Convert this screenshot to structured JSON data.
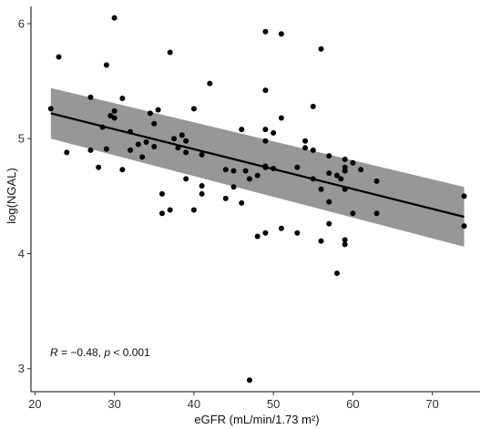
{
  "chart_data": {
    "type": "scatter",
    "title": "",
    "xlabel": "eGFR (mL/min/1.73 m²)",
    "ylabel": "log(NGAL)",
    "xlim": [
      19.5,
      76
    ],
    "ylim": [
      2.8,
      6.15
    ],
    "xticks": [
      20,
      30,
      40,
      50,
      60,
      70
    ],
    "yticks": [
      3,
      4,
      5,
      6
    ],
    "grid": false,
    "point_color": "#000000",
    "band_color": "#8c8c8c",
    "line_color": "#000000",
    "regression": {
      "x": [
        22,
        74
      ],
      "y": [
        5.22,
        4.32
      ],
      "ci_lower": [
        5.0,
        4.06
      ],
      "ci_upper": [
        5.44,
        4.58
      ]
    },
    "annotation": {
      "r_symbol": "R",
      "r_text": " = −0.48, ",
      "p_symbol": "p",
      "p_text": " < 0.001"
    },
    "points": [
      [
        22,
        5.26
      ],
      [
        23,
        5.71
      ],
      [
        24,
        4.88
      ],
      [
        27,
        4.9
      ],
      [
        27,
        5.36
      ],
      [
        28,
        4.75
      ],
      [
        28.5,
        5.1
      ],
      [
        29,
        5.64
      ],
      [
        29,
        4.91
      ],
      [
        29.5,
        5.2
      ],
      [
        30,
        6.05
      ],
      [
        30,
        5.24
      ],
      [
        30,
        5.18
      ],
      [
        31,
        4.73
      ],
      [
        31,
        5.35
      ],
      [
        32,
        5.06
      ],
      [
        32,
        4.9
      ],
      [
        33,
        4.95
      ],
      [
        33.5,
        4.84
      ],
      [
        34,
        4.97
      ],
      [
        34.5,
        5.22
      ],
      [
        35,
        4.93
      ],
      [
        35,
        5.13
      ],
      [
        35.5,
        5.25
      ],
      [
        36,
        4.52
      ],
      [
        36,
        4.35
      ],
      [
        37,
        4.38
      ],
      [
        37,
        5.75
      ],
      [
        37.5,
        5.0
      ],
      [
        38,
        4.92
      ],
      [
        38.5,
        5.03
      ],
      [
        39,
        4.98
      ],
      [
        39,
        4.88
      ],
      [
        39,
        4.65
      ],
      [
        40,
        4.38
      ],
      [
        40,
        5.26
      ],
      [
        41,
        4.59
      ],
      [
        41,
        4.52
      ],
      [
        41,
        4.86
      ],
      [
        42,
        5.48
      ],
      [
        44,
        4.73
      ],
      [
        44,
        4.48
      ],
      [
        45,
        4.58
      ],
      [
        45,
        4.72
      ],
      [
        46,
        4.44
      ],
      [
        46,
        5.08
      ],
      [
        46.5,
        4.72
      ],
      [
        47,
        4.65
      ],
      [
        47,
        2.9
      ],
      [
        48,
        4.15
      ],
      [
        48,
        4.68
      ],
      [
        49,
        4.18
      ],
      [
        49,
        4.76
      ],
      [
        49,
        4.75
      ],
      [
        49,
        5.42
      ],
      [
        49,
        5.93
      ],
      [
        49,
        5.08
      ],
      [
        49,
        4.98
      ],
      [
        50,
        5.05
      ],
      [
        50,
        4.74
      ],
      [
        51,
        5.18
      ],
      [
        51,
        4.22
      ],
      [
        51,
        5.91
      ],
      [
        53,
        4.75
      ],
      [
        53,
        4.18
      ],
      [
        54,
        4.92
      ],
      [
        54,
        4.98
      ],
      [
        55,
        5.28
      ],
      [
        55,
        4.9
      ],
      [
        55,
        4.65
      ],
      [
        56,
        5.78
      ],
      [
        56,
        4.11
      ],
      [
        56,
        4.56
      ],
      [
        57,
        4.26
      ],
      [
        57,
        4.45
      ],
      [
        57,
        4.85
      ],
      [
        57,
        4.7
      ],
      [
        58,
        3.83
      ],
      [
        58,
        4.68
      ],
      [
        58.5,
        4.65
      ],
      [
        59,
        4.82
      ],
      [
        59,
        4.72
      ],
      [
        59,
        4.56
      ],
      [
        59,
        4.12
      ],
      [
        59,
        4.08
      ],
      [
        59,
        4.75
      ],
      [
        60,
        4.79
      ],
      [
        60,
        4.35
      ],
      [
        61,
        4.73
      ],
      [
        63,
        4.63
      ],
      [
        63,
        4.35
      ],
      [
        74,
        4.5
      ],
      [
        74,
        4.24
      ]
    ]
  }
}
